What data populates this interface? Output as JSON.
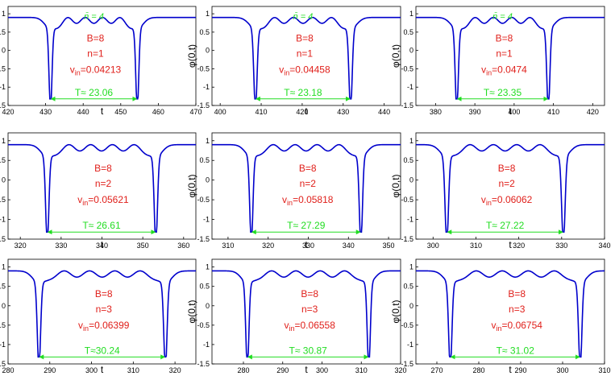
{
  "colors": {
    "curve": "#0000cc",
    "annotation": "#e0201b",
    "period": "#22dd22",
    "axis": "#000000"
  },
  "chart_data": [
    {
      "type": "line",
      "xlabel": "t",
      "ylabel": "φ(0,t)",
      "xlim": [
        420,
        470
      ],
      "ylim": [
        -1.5,
        1.2
      ],
      "xticks": [
        420,
        430,
        440,
        450,
        460,
        470
      ],
      "yticks": [
        -1.5,
        -1,
        -0.5,
        0,
        0.5,
        1
      ],
      "dips": [
        431.3,
        454.4
      ],
      "n_label": "n̄ = 4",
      "B": "B=8",
      "n": "n=1",
      "v_prefix": "v",
      "v_sub": "in",
      "v_value": "=0.04213",
      "period": "T≈ 23.06"
    },
    {
      "type": "line",
      "xlabel": "t",
      "ylabel": "φ(0,t)",
      "xlim": [
        398,
        444
      ],
      "ylim": [
        -1.5,
        1.2
      ],
      "xticks": [
        400,
        410,
        420,
        430,
        440
      ],
      "yticks": [
        -1.5,
        -1,
        -0.5,
        0,
        0.5,
        1
      ],
      "dips": [
        408.6,
        431.8
      ],
      "n_label": "n̄ = 4",
      "B": "B=8",
      "n": "n=1",
      "v_prefix": "v",
      "v_sub": "in",
      "v_value": "=0.04458",
      "period": "T≈ 23.18"
    },
    {
      "type": "line",
      "xlabel": "t",
      "ylabel": "φ(0,t)",
      "xlim": [
        375,
        423
      ],
      "ylim": [
        -1.5,
        1.2
      ],
      "xticks": [
        380,
        390,
        400,
        410,
        420
      ],
      "yticks": [
        -1.5,
        -1,
        -0.5,
        0,
        0.5,
        1
      ],
      "dips": [
        385.4,
        408.7
      ],
      "n_label": "n̄ = 4",
      "B": "B=8",
      "n": "n=1",
      "v_prefix": "v",
      "v_sub": "in",
      "v_value": "=0.0474",
      "period": "T≈ 23.35"
    },
    {
      "type": "line",
      "xlabel": "t",
      "ylabel": "φ(0,t)",
      "xlim": [
        317,
        363
      ],
      "ylim": [
        -1.5,
        1.2
      ],
      "xticks": [
        320,
        330,
        340,
        350,
        360
      ],
      "yticks": [
        -1.5,
        -1,
        -0.5,
        0,
        0.5,
        1
      ],
      "dips": [
        326.6,
        353.2
      ],
      "n_label": "",
      "B": "B=8",
      "n": "n=2",
      "v_prefix": "v",
      "v_sub": "in",
      "v_value": "=0.05621",
      "period": "T≈ 26.61"
    },
    {
      "type": "line",
      "xlabel": "t",
      "ylabel": "φ(0,t)",
      "xlim": [
        306,
        353
      ],
      "ylim": [
        -1.5,
        1.2
      ],
      "xticks": [
        310,
        320,
        330,
        340,
        350
      ],
      "yticks": [
        -1.5,
        -1,
        -0.5,
        0,
        0.5,
        1
      ],
      "dips": [
        315.8,
        343.1
      ],
      "n_label": "",
      "B": "B=8",
      "n": "n=2",
      "v_prefix": "v",
      "v_sub": "in",
      "v_value": "=0.05818",
      "period": "T≈ 27.29"
    },
    {
      "type": "line",
      "xlabel": "t",
      "ylabel": "φ(0,t)",
      "xlim": [
        296,
        340
      ],
      "ylim": [
        -1.5,
        1.2
      ],
      "xticks": [
        300,
        310,
        320,
        330,
        340
      ],
      "yticks": [
        -1.5,
        -1,
        -0.5,
        0,
        0.5,
        1
      ],
      "dips": [
        303.2,
        330.4
      ],
      "n_label": "",
      "B": "B=8",
      "n": "n=2",
      "v_prefix": "v",
      "v_sub": "in",
      "v_value": "=0.06062",
      "period": "T≈ 27.22"
    },
    {
      "type": "line",
      "xlabel": "t",
      "ylabel": "φ(0,t)",
      "xlim": [
        280,
        325
      ],
      "ylim": [
        -1.5,
        1.2
      ],
      "xticks": [
        280,
        290,
        300,
        310,
        320
      ],
      "yticks": [
        -1.5,
        -1,
        -0.5,
        0,
        0.5,
        1
      ],
      "dips": [
        287.4,
        317.7
      ],
      "n_label": "",
      "B": "B=8",
      "n": "n=3",
      "v_prefix": "v",
      "v_sub": "in",
      "v_value": "=0.06399",
      "period": "T≈30.24"
    },
    {
      "type": "line",
      "xlabel": "t",
      "ylabel": "φ(0,t)",
      "xlim": [
        272,
        320
      ],
      "ylim": [
        -1.5,
        1.2
      ],
      "xticks": [
        280,
        290,
        300,
        310,
        320
      ],
      "yticks": [
        -1.5,
        -1,
        -0.5,
        0,
        0.5,
        1
      ],
      "dips": [
        281.0,
        311.9
      ],
      "n_label": "",
      "B": "B=8",
      "n": "n=3",
      "v_prefix": "v",
      "v_sub": "in",
      "v_value": "=0.06558",
      "period": "T≈ 30.87"
    },
    {
      "type": "line",
      "xlabel": "t",
      "ylabel": "φ(0,t)",
      "xlim": [
        265,
        310
      ],
      "ylim": [
        -1.5,
        1.2
      ],
      "xticks": [
        270,
        280,
        290,
        300,
        310
      ],
      "yticks": [
        -1.5,
        -1,
        -0.5,
        0,
        0.5,
        1
      ],
      "dips": [
        273.2,
        304.2
      ],
      "n_label": "",
      "B": "B=8",
      "n": "n=3",
      "v_prefix": "v",
      "v_sub": "in",
      "v_value": "=0.06754",
      "period": "T≈ 31.02"
    }
  ]
}
